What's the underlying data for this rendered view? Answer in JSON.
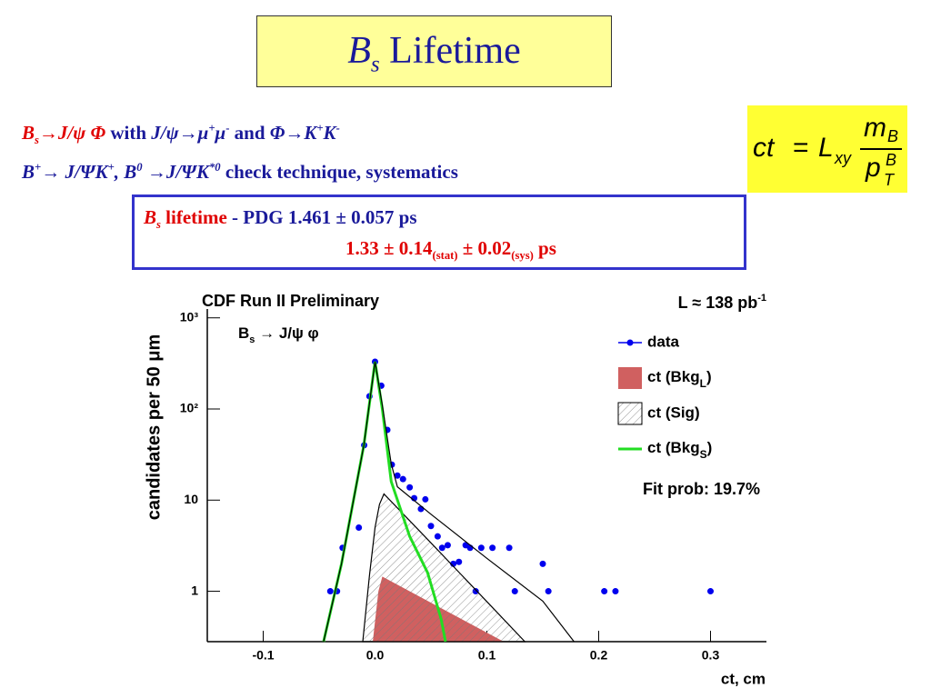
{
  "slide": {
    "title": [
      "B",
      "s",
      " Lifetime"
    ],
    "line1": [
      "B",
      "s",
      "→J/ψ Φ",
      "  with ",
      "J/ψ→μ",
      "+",
      "μ",
      "-",
      " and ",
      "Φ→K",
      "+",
      "K",
      "-"
    ],
    "line2": [
      "B",
      "+",
      "→ J/ΨK",
      "+",
      ", B",
      "0",
      " →J/ΨK",
      "*0",
      " check technique, systematics"
    ],
    "result1": [
      "B",
      "s",
      " lifetime",
      " - PDG 1.461 ± 0.057 ps"
    ],
    "result2": [
      "1.33 ± 0.14",
      "(stat)",
      " ± 0.02",
      "(sys)",
      " ps"
    ],
    "formula": [
      "ct",
      "=",
      "L",
      "xy",
      "m",
      "B",
      "p",
      "T",
      "B"
    ]
  },
  "chart_data": {
    "type": "scatter",
    "xlabel": "ct, cm",
    "ylabel": "candidates per 50  μm",
    "annotations": [
      "CDF Run II Preliminary",
      "L ≈ 138 pb-1",
      "Bs → J/ψ φ",
      "Fit prob: 19.7%"
    ],
    "log_y": true,
    "xlim": [
      -0.15,
      0.35
    ],
    "ylim": [
      0.28,
      1250
    ],
    "xticks": [
      -0.1,
      {
        "value": 0,
        "label": "0.0"
      },
      0.1,
      0.2,
      0.3
    ],
    "yticks": [
      1,
      10,
      {
        "value": 100,
        "label": "10²"
      },
      {
        "value": 1000,
        "label": "10³"
      }
    ],
    "series": [
      {
        "name": "data",
        "kind": "points",
        "color": "#0000ee",
        "x": [
          -0.04,
          -0.034,
          -0.029,
          -0.0145,
          -0.0097,
          -0.005,
          0.0,
          0.0056,
          0.011,
          0.015,
          0.02,
          0.025,
          0.031,
          0.035,
          0.041,
          0.045,
          0.05,
          0.056,
          0.06,
          0.065,
          0.07,
          0.075,
          0.081,
          0.085,
          0.09,
          0.095,
          0.105,
          0.12,
          0.125,
          0.15,
          0.155,
          0.205,
          0.215,
          0.3
        ],
        "values": [
          1,
          1,
          3,
          5,
          40,
          138,
          330,
          180,
          59,
          24.5,
          18.6,
          17,
          13.8,
          10.5,
          8,
          10.2,
          5.2,
          4,
          3,
          3.2,
          2,
          2.1,
          3.2,
          3,
          1,
          3,
          3,
          3,
          1,
          2,
          1,
          1,
          1,
          1
        ]
      },
      {
        "name": "ct (BkgL)",
        "kind": "area",
        "color": "#d06060",
        "x": [
          -0.002,
          0.003,
          0.0065,
          0.05,
          0.115
        ],
        "values": [
          0.28,
          1,
          1.45,
          0.75,
          0.28
        ]
      },
      {
        "name": "ct (Sig)",
        "kind": "hatched",
        "color": "#000000",
        "x": [
          -0.011,
          -0.005,
          0.0,
          0.004,
          0.008,
          0.05,
          0.1,
          0.134
        ],
        "values": [
          0.28,
          1.5,
          5,
          9,
          11.7,
          3.4,
          0.77,
          0.28
        ]
      },
      {
        "name": "ct (BkgS)",
        "kind": "line",
        "color": "#22dd22",
        "x": [
          -0.046,
          -0.03,
          -0.01,
          0.0,
          0.0065,
          0.0145,
          0.031,
          0.047,
          0.059,
          0.063
        ],
        "values": [
          0.28,
          2,
          40,
          330,
          100,
          16,
          4,
          1.6,
          0.5,
          0.28
        ]
      },
      {
        "kind": "line",
        "color": "#000000",
        "x": [
          -0.046,
          -0.03,
          -0.01,
          0.0,
          0.0065,
          0.0145,
          0.02,
          0.05,
          0.1,
          0.15,
          0.178
        ],
        "values": [
          0.28,
          2,
          40,
          330,
          110,
          25,
          14,
          7,
          2.3,
          0.78,
          0.28
        ]
      }
    ]
  }
}
